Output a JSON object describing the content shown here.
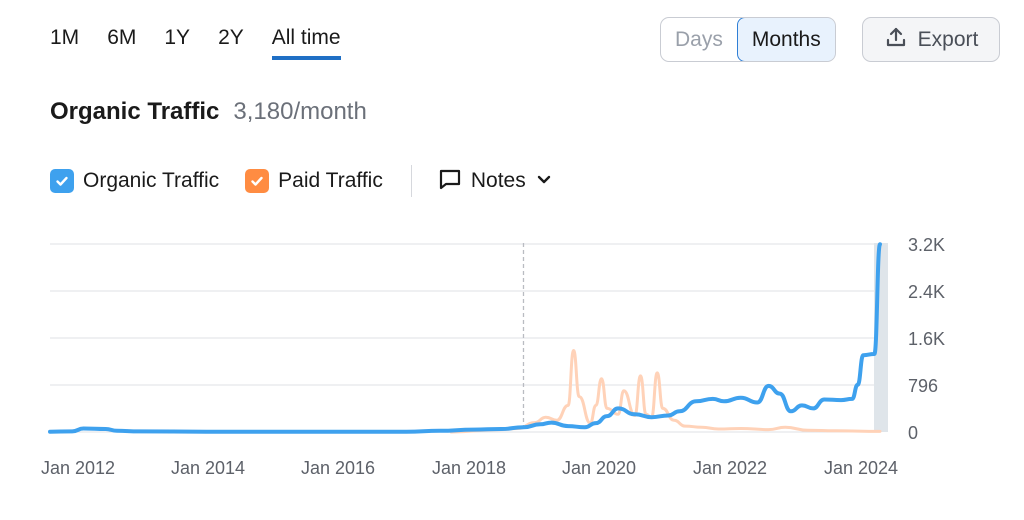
{
  "ranges": {
    "items": [
      "1M",
      "6M",
      "1Y",
      "2Y",
      "All time"
    ],
    "active": "All time"
  },
  "granularity": {
    "days": "Days",
    "months": "Months",
    "active": "Months"
  },
  "export": {
    "label": "Export"
  },
  "header": {
    "title": "Organic Traffic",
    "value": "3,180/month"
  },
  "legend": {
    "organic": {
      "label": "Organic Traffic",
      "color": "#3ea1ee",
      "checked": true
    },
    "paid": {
      "label": "Paid Traffic",
      "color": "#ff8c42",
      "checked": true
    },
    "notes": {
      "label": "Notes"
    }
  },
  "chart_data": {
    "type": "line",
    "x_ticks": [
      "Jan 2012",
      "Jan 2014",
      "Jan 2016",
      "Jan 2018",
      "Jan 2020",
      "Jan 2022",
      "Jan 2024"
    ],
    "y_ticks": [
      "0",
      "796",
      "1.6K",
      "2.4K",
      "3.2K"
    ],
    "ylim": [
      0,
      3200
    ],
    "grid": true,
    "marker_date": "Oct 2018",
    "series": [
      {
        "name": "Organic Traffic",
        "color": "#3ea1ee",
        "points": [
          [
            "2011-09",
            5
          ],
          [
            "2012-01",
            10
          ],
          [
            "2012-03",
            60
          ],
          [
            "2012-07",
            50
          ],
          [
            "2012-09",
            20
          ],
          [
            "2013-01",
            10
          ],
          [
            "2014-01",
            5
          ],
          [
            "2015-01",
            5
          ],
          [
            "2016-01",
            5
          ],
          [
            "2017-01",
            5
          ],
          [
            "2017-07",
            20
          ],
          [
            "2018-01",
            40
          ],
          [
            "2018-06",
            50
          ],
          [
            "2018-10",
            80
          ],
          [
            "2019-01",
            130
          ],
          [
            "2019-03",
            160
          ],
          [
            "2019-06",
            100
          ],
          [
            "2019-09",
            80
          ],
          [
            "2019-11",
            150
          ],
          [
            "2020-01",
            270
          ],
          [
            "2020-03",
            400
          ],
          [
            "2020-06",
            300
          ],
          [
            "2020-09",
            250
          ],
          [
            "2020-12",
            280
          ],
          [
            "2021-02",
            350
          ],
          [
            "2021-05",
            520
          ],
          [
            "2021-08",
            560
          ],
          [
            "2021-10",
            520
          ],
          [
            "2022-01",
            580
          ],
          [
            "2022-04",
            500
          ],
          [
            "2022-06",
            780
          ],
          [
            "2022-08",
            650
          ],
          [
            "2022-10",
            350
          ],
          [
            "2022-12",
            450
          ],
          [
            "2023-02",
            400
          ],
          [
            "2023-04",
            550
          ],
          [
            "2023-07",
            540
          ],
          [
            "2023-09",
            560
          ],
          [
            "2023-10",
            800
          ],
          [
            "2023-11",
            1300
          ],
          [
            "2024-01",
            1320
          ],
          [
            "2024-02",
            3180
          ]
        ]
      },
      {
        "name": "Paid Traffic",
        "color": "#ffd2b8",
        "points": [
          [
            "2017-09",
            0
          ],
          [
            "2018-06",
            40
          ],
          [
            "2018-09",
            60
          ],
          [
            "2018-12",
            160
          ],
          [
            "2019-02",
            250
          ],
          [
            "2019-04",
            200
          ],
          [
            "2019-06",
            450
          ],
          [
            "2019-07",
            1380
          ],
          [
            "2019-08",
            600
          ],
          [
            "2019-10",
            150
          ],
          [
            "2019-11",
            450
          ],
          [
            "2019-12",
            900
          ],
          [
            "2020-01",
            400
          ],
          [
            "2020-03",
            300
          ],
          [
            "2020-04",
            700
          ],
          [
            "2020-06",
            280
          ],
          [
            "2020-07",
            950
          ],
          [
            "2020-08",
            300
          ],
          [
            "2020-09",
            250
          ],
          [
            "2020-10",
            1000
          ],
          [
            "2020-11",
            400
          ],
          [
            "2021-01",
            200
          ],
          [
            "2021-03",
            100
          ],
          [
            "2021-06",
            80
          ],
          [
            "2021-09",
            50
          ],
          [
            "2022-01",
            60
          ],
          [
            "2022-06",
            40
          ],
          [
            "2022-09",
            80
          ],
          [
            "2023-01",
            30
          ],
          [
            "2023-06",
            20
          ],
          [
            "2024-02",
            10
          ]
        ]
      }
    ]
  }
}
